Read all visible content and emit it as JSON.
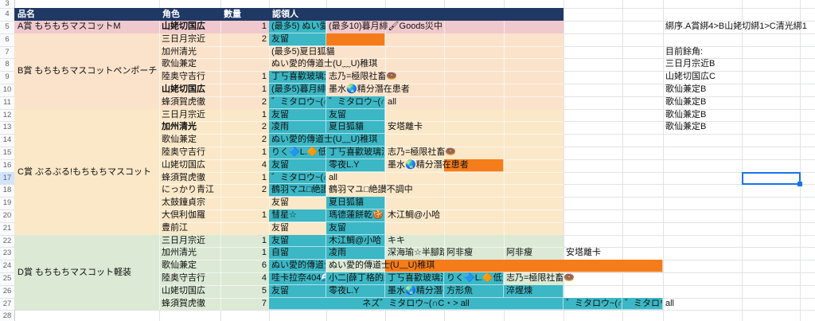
{
  "app": {
    "type": "spreadsheet"
  },
  "colors": {
    "header_bg": "#1f3864",
    "header_text": "#ffffff",
    "band_a": "#f0c9ce",
    "band_b": "#fbe3cb",
    "band_c": "#fbe8c8",
    "band_d": "#dbe9d5",
    "teal": "#3bb7c5",
    "orange": "#f57c1b",
    "gridline": "#e2e3e6",
    "band_divider": "rgba(255,255,255,0.6)",
    "selection_blue": "#1a73e8",
    "rowhead_highlight": "#d2e3fc",
    "rowhead_edge": "#c9cacc",
    "rownum_text": "#666666",
    "text": "#111111"
  },
  "header": {
    "labels": {
      "A": "品名",
      "B": "角色",
      "C": "數量",
      "D": "認領人"
    }
  },
  "prizes": [
    {
      "label": "A賞 もちもちマスコットM",
      "start": 5,
      "end": 5,
      "color_key": "band_a"
    },
    {
      "label": "B賞 もちもちマスコットペンポーチ",
      "start": 6,
      "end": 11,
      "color_key": "band_b"
    },
    {
      "label": "C賞 ぶるぶる!もちもちマスコット",
      "start": 12,
      "end": 21,
      "color_key": "band_c"
    },
    {
      "label": "D賞 もちもちマスコット軽装",
      "start": 22,
      "end": 27,
      "color_key": "band_d"
    }
  ],
  "rows": [
    {
      "n": 5,
      "character": "山姥切国広",
      "bold": true,
      "qty": "1",
      "claims": [
        {
          "col": "D",
          "text": "(最多5) ぬい愛的",
          "bg": "teal",
          "clip": true
        },
        {
          "col": "E",
          "text": "(最多10)暮月緋🖌Goods災中",
          "spill": true
        }
      ]
    },
    {
      "n": 6,
      "character": "三日月宗近",
      "qty": "2",
      "claims": [
        {
          "col": "D",
          "text": "友留",
          "bg": "teal"
        },
        {
          "col": "E",
          "text": "",
          "bg": "orange"
        }
      ]
    },
    {
      "n": 7,
      "character": "加州清光",
      "qty": "",
      "claims": [
        {
          "col": "D",
          "text": "(最多5)夏日狐貓",
          "spill": true
        }
      ]
    },
    {
      "n": 8,
      "character": "歌仙兼定",
      "qty": "",
      "claims": [
        {
          "col": "D",
          "text": "ぬい愛的傳道士(U﹏U)稚琪",
          "spill": true
        }
      ]
    },
    {
      "n": 9,
      "character": "陸奥守吉行",
      "qty": "1",
      "claims": [
        {
          "col": "D",
          "text": "丁丂喜歡玻璃渣潛",
          "bg": "teal",
          "clip": true
        },
        {
          "col": "E",
          "text": "志乃=極限社畜🍩",
          "spill": true
        }
      ]
    },
    {
      "n": 10,
      "character": "山姥切国広",
      "bold": true,
      "qty": "1",
      "claims": [
        {
          "col": "D",
          "text": "(最多5)暮月緋🖌",
          "bg": "teal",
          "clip": true
        },
        {
          "col": "E",
          "text": "墨水🌏精分潛在患者",
          "spill": true
        }
      ]
    },
    {
      "n": 11,
      "character": "蜂須賀虎徹",
      "qty": "2",
      "claims": [
        {
          "col": "D",
          "text": "゛ミタロウ~(∩C・>",
          "bg": "teal",
          "clip": true
        },
        {
          "col": "E",
          "text": "゛ミタロウ~(∩C・>",
          "bg": "teal",
          "clip": true
        },
        {
          "col": "F",
          "text": "all"
        }
      ]
    },
    {
      "n": 12,
      "character": "三日月宗近",
      "qty": "1",
      "claims": [
        {
          "col": "D",
          "text": "友留",
          "bg": "teal"
        },
        {
          "col": "E",
          "text": "友留",
          "bg": "teal"
        }
      ]
    },
    {
      "n": 13,
      "character": "加州清光",
      "bold": true,
      "qty": "2",
      "claims": [
        {
          "col": "D",
          "text": "凌雨",
          "bg": "teal"
        },
        {
          "col": "E",
          "text": "夏日狐貓",
          "bg": "teal"
        },
        {
          "col": "F",
          "text": "安塔離卡"
        }
      ]
    },
    {
      "n": 14,
      "character": "歌仙兼定",
      "qty": "2",
      "claims": [
        {
          "col": "D",
          "text": "ぬい愛的傳道士(U﹏U)稚琪",
          "bg": "teal",
          "span": 2,
          "clip": true
        }
      ]
    },
    {
      "n": 15,
      "character": "陸奥守吉行",
      "qty": "1",
      "claims": [
        {
          "col": "D",
          "text": "りく🔷L.🔶低浮",
          "bg": "teal",
          "clip": true
        },
        {
          "col": "E",
          "text": "丁丂喜歡玻璃渣潛",
          "bg": "teal",
          "clip": true
        },
        {
          "col": "F",
          "text": "志乃=極限社畜🍩",
          "spill": true
        }
      ]
    },
    {
      "n": 16,
      "character": "山姥切国広",
      "qty": "4",
      "claims": [
        {
          "col": "G",
          "text": "",
          "bg": "orange"
        },
        {
          "col": "D",
          "text": "友留",
          "bg": "teal"
        },
        {
          "col": "E",
          "text": "零夜L.Y",
          "bg": "teal"
        },
        {
          "col": "F",
          "text": "墨水🌏精分潛在患者",
          "spill": true
        }
      ]
    },
    {
      "n": 17,
      "character": "蜂須賀虎徹",
      "qty": "1",
      "claims": [
        {
          "col": "D",
          "text": "゛ミタロウ~(∩C・>",
          "bg": "teal",
          "clip": true
        },
        {
          "col": "E",
          "text": "all"
        }
      ]
    },
    {
      "n": 18,
      "character": "にっかり青江",
      "qty": "2",
      "claims": [
        {
          "col": "D",
          "text": "鶴羽マユ□絶讃不調中",
          "bg": "teal",
          "clip": true
        },
        {
          "col": "E",
          "text": "鶴羽マユ□絶讃不調中",
          "spill": true
        }
      ]
    },
    {
      "n": 19,
      "character": "太鼓鐘貞宗",
      "qty": "",
      "claims": [
        {
          "col": "D",
          "text": "友留"
        },
        {
          "col": "E",
          "text": "夏日狐貓",
          "bg": "teal"
        }
      ]
    },
    {
      "n": 20,
      "character": "大倶利伽羅",
      "qty": "1",
      "claims": [
        {
          "col": "D",
          "text": "彗星☆",
          "bg": "teal"
        },
        {
          "col": "E",
          "text": "瑪德蓮餅乾🍪",
          "bg": "teal",
          "clip": true
        },
        {
          "col": "F",
          "text": "木江鯛@小哈",
          "spill": true
        }
      ]
    },
    {
      "n": 21,
      "character": "豊前江",
      "qty": "",
      "claims": [
        {
          "col": "D",
          "text": "友留"
        },
        {
          "col": "E",
          "text": "友留",
          "bg": "teal"
        }
      ]
    },
    {
      "n": 22,
      "character": "三日月宗近",
      "qty": "1",
      "claims": [
        {
          "col": "D",
          "text": "友留",
          "bg": "teal"
        },
        {
          "col": "E",
          "text": "木江鯛@小哈",
          "bg": "teal",
          "clip": true
        },
        {
          "col": "F",
          "text": "キキ"
        }
      ]
    },
    {
      "n": 23,
      "character": "加州清光",
      "qty": "1",
      "claims": [
        {
          "col": "D",
          "text": "自留",
          "bg": "teal"
        },
        {
          "col": "E",
          "text": "凌雨",
          "bg": "teal"
        },
        {
          "col": "F",
          "text": "深海瑜☆半腳踏踏",
          "clip": true
        },
        {
          "col": "G",
          "text": "阿非瘦"
        },
        {
          "col": "H",
          "text": "阿非瘦"
        },
        {
          "col": "I",
          "text": "安塔離卡"
        }
      ]
    },
    {
      "n": 24,
      "character": "歌仙兼定",
      "qty": "6",
      "claims": [
        {
          "col": "F",
          "text": "",
          "bg": "orange",
          "span": 5
        },
        {
          "col": "D",
          "text": "ぬい愛的傳道士(",
          "bg": "teal",
          "clip": true
        },
        {
          "col": "E",
          "text": "ぬい愛的傳道士(U﹏U)稚琪",
          "spill": true
        }
      ]
    },
    {
      "n": 25,
      "character": "陸奥守吉行",
      "qty": "4",
      "claims": [
        {
          "col": "D",
          "text": "哇卡拉奈404🌊(",
          "bg": "teal",
          "clip": true
        },
        {
          "col": "E",
          "text": "小二|薛丁格的緵",
          "bg": "teal",
          "clip": true
        },
        {
          "col": "F",
          "text": "丁丂喜歡玻璃渣潛",
          "bg": "teal",
          "clip": true
        },
        {
          "col": "G",
          "text": "りく🔷L.🔶低浮",
          "bg": "teal",
          "clip": true
        },
        {
          "col": "H",
          "text": "志乃=極限社畜🍩",
          "spill": true
        }
      ]
    },
    {
      "n": 26,
      "character": "山姥切国広",
      "qty": "5",
      "claims": [
        {
          "col": "D",
          "text": "友留",
          "bg": "teal"
        },
        {
          "col": "E",
          "text": "零夜L.Y",
          "bg": "teal"
        },
        {
          "col": "F",
          "text": "墨水🌏精分潛在",
          "bg": "teal",
          "clip": true
        },
        {
          "col": "G",
          "text": "方形魚",
          "bg": "teal"
        },
        {
          "col": "H",
          "text": "淬煋煉",
          "bg": "teal"
        }
      ]
    },
    {
      "n": 27,
      "character": "蜂須賀虎徹",
      "qty": "7",
      "claims": [
        {
          "col": "D",
          "text": "ネズ゛ミタロウ~(∩C・>  all",
          "bg": "teal",
          "span": 5,
          "align": "center"
        },
        {
          "col": "I",
          "text": "゛ミタロウ~(∩C・>",
          "bg": "teal",
          "clip": true
        },
        {
          "col": "J",
          "text": "゛ミタロウ~(∩C・>",
          "bg": "teal",
          "clip": true
        },
        {
          "col": "K",
          "text": "all"
        }
      ]
    }
  ],
  "side_notes": [
    {
      "row": 5,
      "text": "綁序.A賞綁4>B山姥切綁1>C清光綁1"
    },
    {
      "row": 7,
      "text": "目前餘角:"
    },
    {
      "row": 8,
      "text": "三日月宗近B"
    },
    {
      "row": 9,
      "text": "山姥切国広C"
    },
    {
      "row": 10,
      "text": "歌仙兼定B"
    },
    {
      "row": 11,
      "text": "歌仙兼定B"
    },
    {
      "row": 12,
      "text": "歌仙兼定B"
    },
    {
      "row": 13,
      "text": "歌仙兼定B"
    }
  ],
  "row_numbers_visible": {
    "first": 3,
    "last": 28
  },
  "selection": {
    "row": 17,
    "col": "L"
  }
}
